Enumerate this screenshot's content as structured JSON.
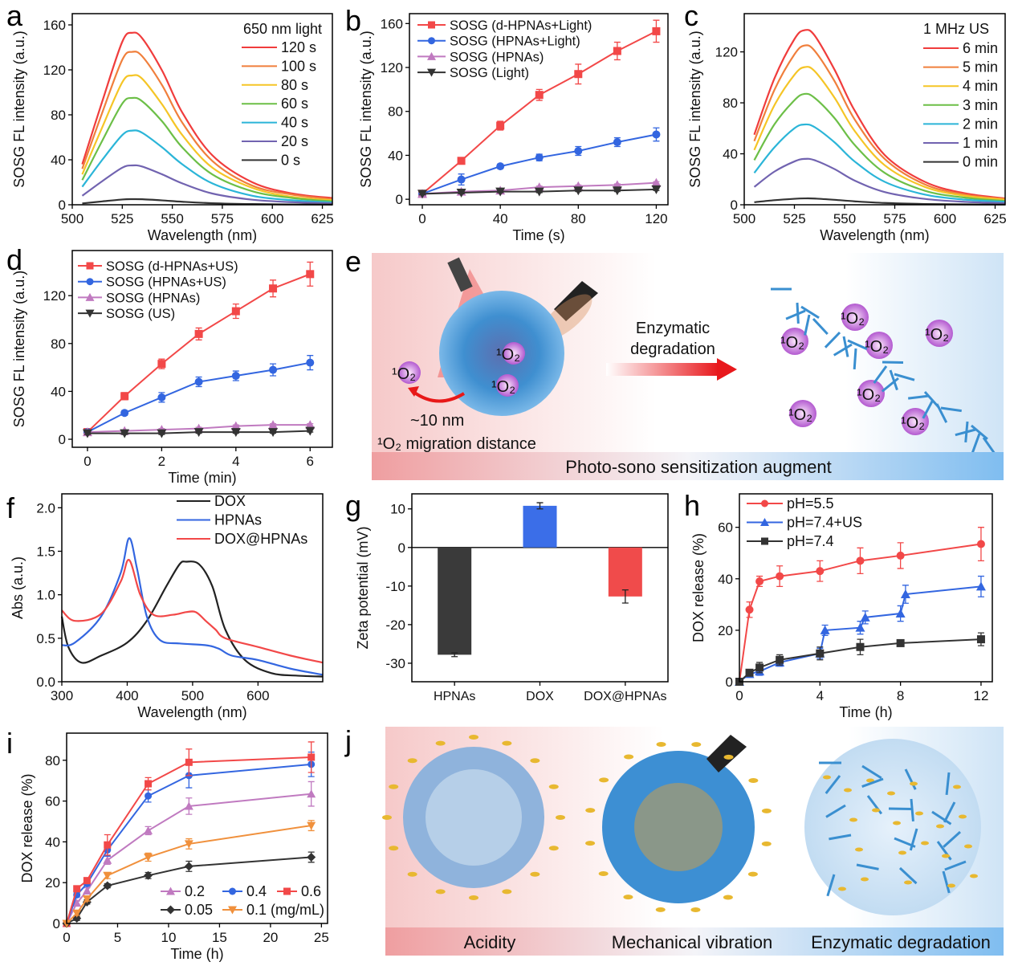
{
  "panel_letters": [
    "a",
    "b",
    "c",
    "d",
    "e",
    "f",
    "g",
    "h",
    "i",
    "j"
  ],
  "colors": {
    "red": "#f24848",
    "blue": "#3366e0",
    "pink": "#c07ac0",
    "dark": "#333333",
    "orange": "#f0903c"
  },
  "chart_data": [
    {
      "id": "a",
      "type": "line",
      "xlabel": "Wavelength (nm)",
      "ylabel": "SOSG FL intensity (a.u.)",
      "xlim": [
        500,
        630
      ],
      "ylim": [
        0,
        170
      ],
      "xticks": [
        500,
        525,
        550,
        575,
        600,
        625
      ],
      "yticks": [
        0,
        40,
        80,
        120,
        160
      ],
      "legend_title": "650 nm light",
      "legend_placement": "top-right",
      "x": [
        505,
        515,
        525,
        530,
        535,
        545,
        555,
        570,
        590,
        610,
        630
      ],
      "series": [
        {
          "name": "120 s",
          "color": "#f03c3c",
          "y": [
            36,
            92,
            145,
            153,
            148,
            119,
            82,
            44,
            20,
            10,
            6
          ]
        },
        {
          "name": "100 s",
          "color": "#f07f3c",
          "y": [
            32,
            82,
            129,
            136,
            132,
            106,
            73,
            39,
            17,
            9,
            5
          ]
        },
        {
          "name": "80 s",
          "color": "#f5c526",
          "y": [
            27,
            69,
            109,
            115,
            112,
            89,
            62,
            33,
            15,
            7,
            4
          ]
        },
        {
          "name": "60 s",
          "color": "#6cbf47",
          "y": [
            22,
            57,
            90,
            95,
            92,
            74,
            51,
            27,
            12,
            6,
            3
          ]
        },
        {
          "name": "40 s",
          "color": "#2bb5d8",
          "y": [
            16,
            40,
            62,
            66,
            64,
            51,
            36,
            19,
            8,
            4,
            2
          ]
        },
        {
          "name": "20 s",
          "color": "#7163b0",
          "y": [
            8,
            21,
            33,
            35,
            34,
            27,
            19,
            10,
            4.5,
            2.3,
            1.3
          ]
        },
        {
          "name": "0 s",
          "color": "#333333",
          "y": [
            1.2,
            3,
            4.7,
            5,
            4.9,
            3.9,
            2.7,
            1.4,
            0.6,
            0.3,
            0.2
          ]
        }
      ]
    },
    {
      "id": "b",
      "type": "line",
      "xlabel": "Time (s)",
      "ylabel": "SOSG FL intensity (a.u.)",
      "xlim": [
        -6.6,
        126
      ],
      "ylim": [
        -5,
        169
      ],
      "xticks": [
        0,
        40,
        80,
        120
      ],
      "yticks": [
        0,
        40,
        80,
        120,
        160
      ],
      "legend_placement": "top-left",
      "x": [
        0,
        20,
        40,
        60,
        80,
        100,
        120
      ],
      "series": [
        {
          "name": "SOSG (d-HPNAs+Light)",
          "color": "#f24848",
          "marker": "square",
          "y": [
            5,
            35,
            67,
            95,
            114,
            135,
            153
          ],
          "err": [
            1,
            3,
            4,
            5,
            9,
            8,
            10
          ]
        },
        {
          "name": "SOSG (HPNAs+Light)",
          "color": "#3366e0",
          "marker": "circle",
          "y": [
            5,
            18,
            30,
            38,
            44,
            52,
            59
          ],
          "err": [
            1,
            5,
            2,
            3,
            4,
            4,
            6
          ]
        },
        {
          "name": "SOSG (HPNAs)",
          "color": "#c07ac0",
          "marker": "triangle-up",
          "y": [
            5,
            7,
            8,
            11,
            12,
            13,
            15
          ],
          "err": [
            1,
            1,
            1,
            1,
            1,
            1,
            1
          ]
        },
        {
          "name": "SOSG (Light)",
          "color": "#333333",
          "marker": "triangle-down",
          "y": [
            5,
            6,
            7,
            7,
            8,
            8,
            9
          ],
          "err": [
            1,
            1,
            1,
            1,
            1,
            1,
            1
          ]
        }
      ]
    },
    {
      "id": "c",
      "type": "line",
      "xlabel": "Wavelength (nm)",
      "ylabel": "SOSG FL intensity (a.u.)",
      "xlim": [
        500,
        630
      ],
      "ylim": [
        0,
        150
      ],
      "xticks": [
        500,
        525,
        550,
        575,
        600,
        625
      ],
      "yticks": [
        0,
        40,
        80,
        120
      ],
      "legend_title": "1 MHz US",
      "legend_placement": "top-right",
      "x": [
        505,
        515,
        525,
        530,
        535,
        545,
        555,
        570,
        590,
        610,
        630
      ],
      "series": [
        {
          "name": "6 min",
          "color": "#f03c3c",
          "y": [
            55,
            99,
            130,
            137,
            133,
            106,
            74,
            39,
            18,
            9,
            5
          ]
        },
        {
          "name": "5 min",
          "color": "#f07f3c",
          "y": [
            50,
            90,
            118,
            125,
            121,
            97,
            67,
            36,
            16,
            8,
            4.5
          ]
        },
        {
          "name": "4 min",
          "color": "#f5c526",
          "y": [
            43,
            78,
            102,
            108,
            105,
            84,
            58,
            31,
            14,
            7,
            4
          ]
        },
        {
          "name": "3 min",
          "color": "#6cbf47",
          "y": [
            35,
            63,
            82,
            87,
            84,
            68,
            47,
            25,
            11,
            5.6,
            3
          ]
        },
        {
          "name": "2 min",
          "color": "#2bb5d8",
          "y": [
            25,
            45,
            60,
            63,
            61,
            49,
            34,
            18,
            8,
            4,
            2.3
          ]
        },
        {
          "name": "1 min",
          "color": "#7163b0",
          "y": [
            14,
            26,
            34,
            36,
            35,
            28,
            19,
            10,
            4.6,
            2.3,
            1.3
          ]
        },
        {
          "name": "0 min",
          "color": "#333333",
          "y": [
            2,
            3.6,
            4.7,
            5,
            4.9,
            3.9,
            2.7,
            1.4,
            0.6,
            0.3,
            0.2
          ]
        }
      ]
    },
    {
      "id": "d",
      "type": "line",
      "xlabel": "Time (min)",
      "ylabel": "SOSG FL intensity (a.u.)",
      "xlim": [
        -0.41,
        6.6
      ],
      "ylim": [
        -6.7,
        157.7
      ],
      "xticks": [
        0,
        2,
        4,
        6
      ],
      "yticks": [
        0,
        40,
        80,
        120
      ],
      "legend_placement": "top-left",
      "x": [
        0,
        1,
        2,
        3,
        4,
        5,
        6
      ],
      "series": [
        {
          "name": "SOSG (d-HPNAs+US)",
          "color": "#f24848",
          "marker": "square",
          "y": [
            6,
            36,
            63,
            88,
            107,
            126,
            138
          ],
          "err": [
            1,
            3,
            4,
            5,
            6,
            7,
            10
          ]
        },
        {
          "name": "SOSG (HPNAs+US)",
          "color": "#3366e0",
          "marker": "circle",
          "y": [
            6,
            22,
            35,
            48,
            53,
            58,
            64
          ],
          "err": [
            1,
            2,
            4,
            4,
            4,
            5,
            6
          ]
        },
        {
          "name": "SOSG (HPNAs)",
          "color": "#c07ac0",
          "marker": "triangle-up",
          "y": [
            6,
            7,
            8,
            9,
            11,
            12,
            12
          ],
          "err": [
            1,
            1,
            1,
            1,
            1,
            1,
            1
          ]
        },
        {
          "name": "SOSG (US)",
          "color": "#333333",
          "marker": "triangle-down",
          "y": [
            5,
            5,
            5,
            6,
            6,
            6,
            7
          ],
          "err": [
            1,
            1,
            1,
            1,
            1,
            1,
            1
          ]
        }
      ]
    },
    {
      "id": "f",
      "type": "line",
      "xlabel": "Wavelength (nm)",
      "ylabel": "Abs (a.u.)",
      "xlim": [
        300,
        699
      ],
      "ylim": [
        0,
        2.16
      ],
      "xticks": [
        300,
        400,
        500,
        600
      ],
      "yticks": [
        0,
        0.5,
        1.0,
        1.5,
        2.0
      ],
      "ytick_labels": [
        "0.0",
        "0.5",
        "1.0",
        "1.5",
        "2.0"
      ],
      "legend_placement": "top-right",
      "series": [
        {
          "name": "DOX",
          "color": "#222222",
          "x": [
            300,
            310,
            330,
            360,
            400,
            430,
            460,
            480,
            490,
            510,
            530,
            550,
            580,
            620,
            660,
            699
          ],
          "y": [
            0.75,
            0.4,
            0.22,
            0.3,
            0.45,
            0.7,
            1.1,
            1.35,
            1.38,
            1.35,
            1.1,
            0.6,
            0.25,
            0.1,
            0.07,
            0.06
          ]
        },
        {
          "name": "HPNAs",
          "color": "#3366e0",
          "x": [
            300,
            320,
            360,
            390,
            403,
            415,
            430,
            450,
            480,
            520,
            540,
            560,
            600,
            650,
            699
          ],
          "y": [
            0.42,
            0.45,
            0.75,
            1.25,
            1.65,
            1.3,
            0.75,
            0.48,
            0.44,
            0.42,
            0.38,
            0.3,
            0.25,
            0.15,
            0.08
          ]
        },
        {
          "name": "DOX@HPNAs",
          "color": "#f24848",
          "x": [
            300,
            320,
            360,
            390,
            403,
            420,
            440,
            470,
            490,
            505,
            520,
            535,
            550,
            600,
            650,
            699
          ],
          "y": [
            0.82,
            0.7,
            0.78,
            1.15,
            1.4,
            1.0,
            0.77,
            0.77,
            0.8,
            0.8,
            0.7,
            0.6,
            0.5,
            0.4,
            0.3,
            0.22
          ]
        }
      ]
    },
    {
      "id": "g",
      "type": "bar",
      "xlabel": "",
      "ylabel": "Zeta potential (mV)",
      "ylim": [
        -34.8,
        13.9
      ],
      "yticks": [
        -30,
        -20,
        -10,
        0,
        10
      ],
      "categories": [
        "HPNAs",
        "DOX",
        "DOX@HPNAs"
      ],
      "values": [
        -27.8,
        10.8,
        -12.7
      ],
      "err": [
        0.5,
        0.8,
        1.7
      ],
      "bar_colors": [
        "#3a3a3a",
        "#3b6ee8",
        "#f04b4b"
      ]
    },
    {
      "id": "h",
      "type": "line",
      "xlabel": "Time (h)",
      "ylabel": "DOX release (%)",
      "xlim": [
        0,
        12.56
      ],
      "ylim": [
        0,
        73
      ],
      "xticks": [
        0,
        4,
        8,
        12
      ],
      "yticks": [
        0,
        20,
        40,
        60
      ],
      "legend_placement": "top-left",
      "series": [
        {
          "name": "pH=5.5",
          "color": "#f24848",
          "marker": "circle",
          "x": [
            0,
            0.5,
            1,
            2,
            4,
            6,
            8,
            12
          ],
          "y": [
            0,
            28,
            39,
            41,
            43,
            47,
            49,
            53.5
          ],
          "err": [
            0,
            3,
            2,
            4,
            4,
            5,
            5,
            6.5
          ]
        },
        {
          "name": "pH=7.4+US",
          "color": "#3366e0",
          "marker": "triangle-up",
          "x": [
            0,
            0.5,
            1,
            2,
            4,
            4.25,
            6,
            6.25,
            8,
            8.25,
            12
          ],
          "y": [
            0,
            3,
            4,
            7.5,
            11,
            20,
            21,
            25,
            26.5,
            34,
            37
          ],
          "err": [
            0,
            1,
            1.5,
            1.5,
            2,
            2,
            2.5,
            2.5,
            3,
            3.5,
            4
          ]
        },
        {
          "name": "pH=7.4",
          "color": "#333333",
          "marker": "square",
          "x": [
            0,
            0.5,
            1,
            2,
            4,
            6,
            8,
            12
          ],
          "y": [
            0,
            3.5,
            5.5,
            8.5,
            11,
            13.5,
            15,
            16.5
          ],
          "err": [
            0,
            1,
            2,
            2,
            2.5,
            3,
            0.5,
            2.5
          ]
        }
      ]
    },
    {
      "id": "i",
      "type": "line",
      "xlabel": "Time (h)",
      "ylabel": "DOX release (%)",
      "xlim": [
        0,
        25.6
      ],
      "ylim": [
        0,
        93.3
      ],
      "xticks": [
        0,
        5,
        10,
        15,
        20,
        25
      ],
      "yticks": [
        0,
        20,
        40,
        60,
        80
      ],
      "legend_placement": "bottom-right",
      "x": [
        0,
        1,
        2,
        4,
        8,
        12,
        24
      ],
      "series": [
        {
          "name": "0.2",
          "color": "#c07ac0",
          "marker": "triangle-up",
          "y": [
            0,
            10,
            16,
            31,
            45.5,
            57.5,
            63.5
          ],
          "err": [
            0,
            1,
            1.5,
            2,
            2,
            4,
            6
          ]
        },
        {
          "name": "0.4",
          "color": "#3366e0",
          "marker": "circle",
          "y": [
            0,
            14,
            19.5,
            36,
            62.5,
            72.5,
            78
          ],
          "err": [
            0,
            1,
            1,
            3,
            3,
            6,
            6
          ]
        },
        {
          "name": "0.6",
          "color": "#f24848",
          "marker": "square",
          "y": [
            0,
            17,
            21,
            38.5,
            68.5,
            79,
            81.5
          ],
          "err": [
            0,
            1,
            1,
            5,
            3,
            6.5,
            7.5
          ]
        },
        {
          "name": "0.05",
          "color": "#333333",
          "marker": "diamond",
          "y": [
            0,
            2.5,
            10.5,
            18.5,
            23.5,
            28,
            32.5
          ],
          "err": [
            0,
            1,
            1,
            1,
            1.5,
            2.5,
            2.5
          ]
        },
        {
          "name": "0.1 (mg/mL)",
          "color": "#f0903c",
          "marker": "triangle-down",
          "y": [
            0,
            5,
            12,
            23.5,
            32.5,
            39,
            48
          ],
          "err": [
            0,
            1,
            1,
            1.5,
            2,
            2.5,
            2.5
          ]
        }
      ]
    }
  ],
  "panel_e": {
    "singlet_oxygen": "¹O₂",
    "distance": "~10 nm",
    "migration": "¹O₂ migration distance",
    "enzymatic_line1": "Enzymatic",
    "enzymatic_line2": "degradation",
    "banner": "Photo-sono sensitization augment"
  },
  "panel_j": {
    "acidity": "Acidity",
    "mechanical": "Mechanical vibration",
    "enzymatic": "Enzymatic degradation"
  }
}
